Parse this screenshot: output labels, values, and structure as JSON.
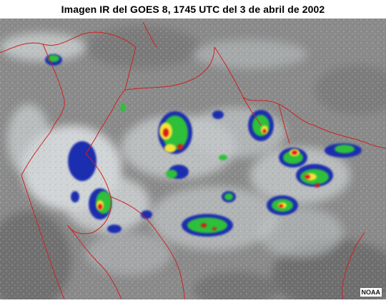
{
  "title": "Imagen IR del GOES 8, 1745 UTC del 3 de abril de 2002",
  "credit": "NOAA",
  "colors": {
    "background": "#ffffff",
    "ir_base": "#8a8a8a",
    "cloud_cold": "#e8ecee",
    "ir_blue": "#1f2fb0",
    "ir_green": "#2fbf3a",
    "ir_yellow": "#f4e23a",
    "ir_red": "#e01818",
    "borders": "#d02020"
  }
}
